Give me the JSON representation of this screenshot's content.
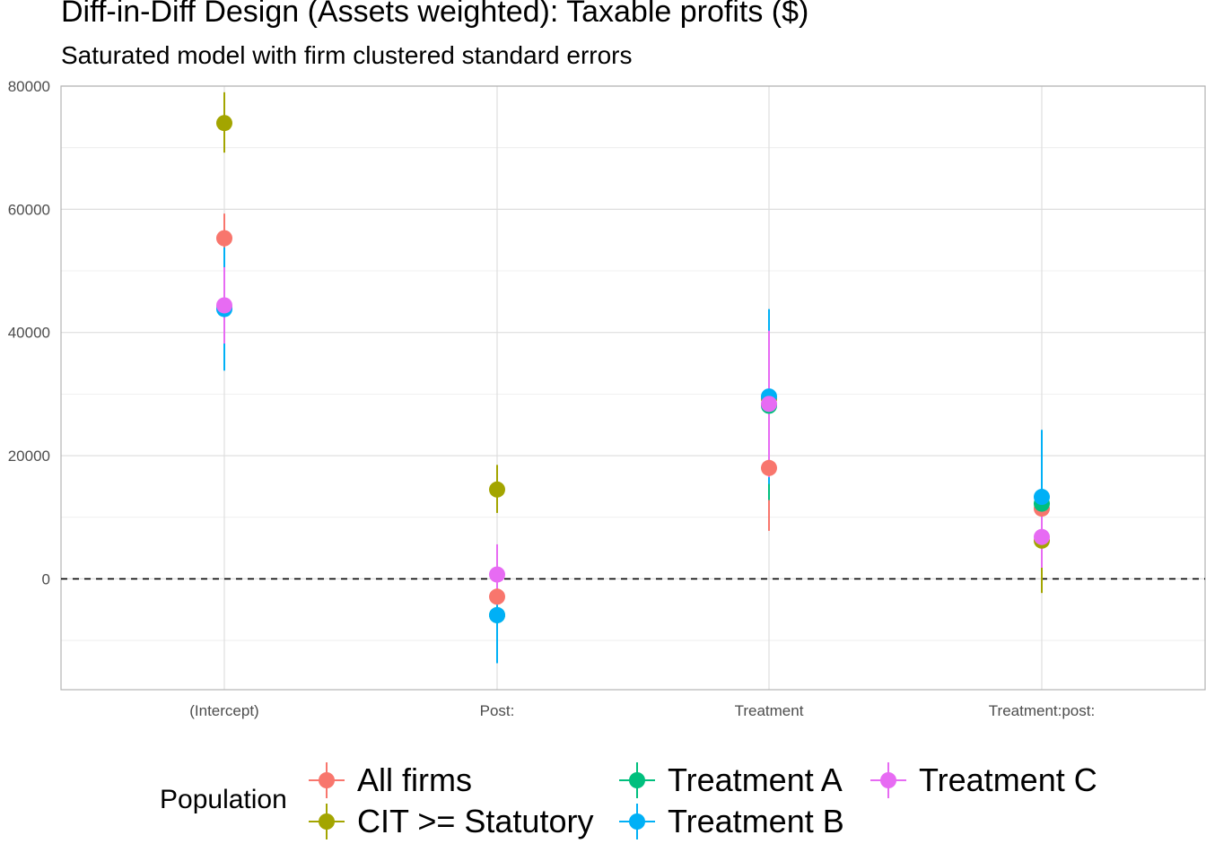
{
  "title": "Diff-in-Diff Design (Assets weighted): Taxable profits  ($)",
  "subtitle": "Saturated model with firm clustered standard errors",
  "legend": {
    "title": "Population",
    "items": [
      {
        "label": "All firms",
        "color": "#F8766D"
      },
      {
        "label": "CIT >= Statutory",
        "color": "#A3A500"
      },
      {
        "label": "Treatment A",
        "color": "#00BF7D"
      },
      {
        "label": "Treatment B",
        "color": "#00B0F6"
      },
      {
        "label": "Treatment C",
        "color": "#E76BF3"
      }
    ]
  },
  "chart_data": {
    "type": "scatter",
    "subtype": "point-range (coefficient estimates with error bars)",
    "categories": [
      "(Intercept)",
      "Post:",
      "Treatment",
      "Treatment:post:"
    ],
    "xlabel": "",
    "ylabel": "",
    "ylim": [
      -18000,
      80000
    ],
    "y_ticks": [
      "0",
      "20000",
      "40000",
      "60000",
      "80000"
    ],
    "reference_line": {
      "y": 0,
      "style": "dashed"
    },
    "grid": true,
    "legend_position": "bottom",
    "series": [
      {
        "name": "All firms",
        "color": "#F8766D",
        "points": [
          {
            "category": "(Intercept)",
            "y": 55300,
            "low": 51300,
            "high": 59300
          },
          {
            "category": "Post:",
            "y": -2900,
            "low": -5500,
            "high": -300
          },
          {
            "category": "Treatment",
            "y": 18000,
            "low": 7800,
            "high": 28200
          },
          {
            "category": "Treatment:post:",
            "y": 11400,
            "low": 7000,
            "high": 15800
          }
        ]
      },
      {
        "name": "CIT >= Statutory",
        "color": "#A3A500",
        "points": [
          {
            "category": "(Intercept)",
            "y": 74000,
            "low": 69200,
            "high": 79000
          },
          {
            "category": "Post:",
            "y": 14500,
            "low": 10700,
            "high": 18500
          },
          {
            "category": "Treatment",
            "y": 29200,
            "low": 17300,
            "high": 41100
          },
          {
            "category": "Treatment:post:",
            "y": 6200,
            "low": -2300,
            "high": 14700
          }
        ]
      },
      {
        "name": "Treatment A",
        "color": "#00BF7D",
        "points": [
          {
            "category": "(Intercept)",
            "y": 44000,
            "low": 37600,
            "high": 50400
          },
          {
            "category": "Post:",
            "y": -5900,
            "low": -12000,
            "high": 200
          },
          {
            "category": "Treatment",
            "y": 28100,
            "low": 12800,
            "high": 43400
          },
          {
            "category": "Treatment:post:",
            "y": 12200,
            "low": 5500,
            "high": 18900
          }
        ]
      },
      {
        "name": "Treatment B",
        "color": "#00B0F6",
        "points": [
          {
            "category": "(Intercept)",
            "y": 43800,
            "low": 33800,
            "high": 53800
          },
          {
            "category": "Post:",
            "y": -5900,
            "low": -13700,
            "high": 1900
          },
          {
            "category": "Treatment",
            "y": 29600,
            "low": 15400,
            "high": 43800
          },
          {
            "category": "Treatment:post:",
            "y": 13300,
            "low": 2400,
            "high": 24200
          }
        ]
      },
      {
        "name": "Treatment C",
        "color": "#E76BF3",
        "points": [
          {
            "category": "(Intercept)",
            "y": 44400,
            "low": 38200,
            "high": 50600
          },
          {
            "category": "Post:",
            "y": 700,
            "low": -4200,
            "high": 5600
          },
          {
            "category": "Treatment",
            "y": 28400,
            "low": 16500,
            "high": 40300
          },
          {
            "category": "Treatment:post:",
            "y": 6800,
            "low": 1800,
            "high": 11800
          }
        ]
      }
    ]
  }
}
